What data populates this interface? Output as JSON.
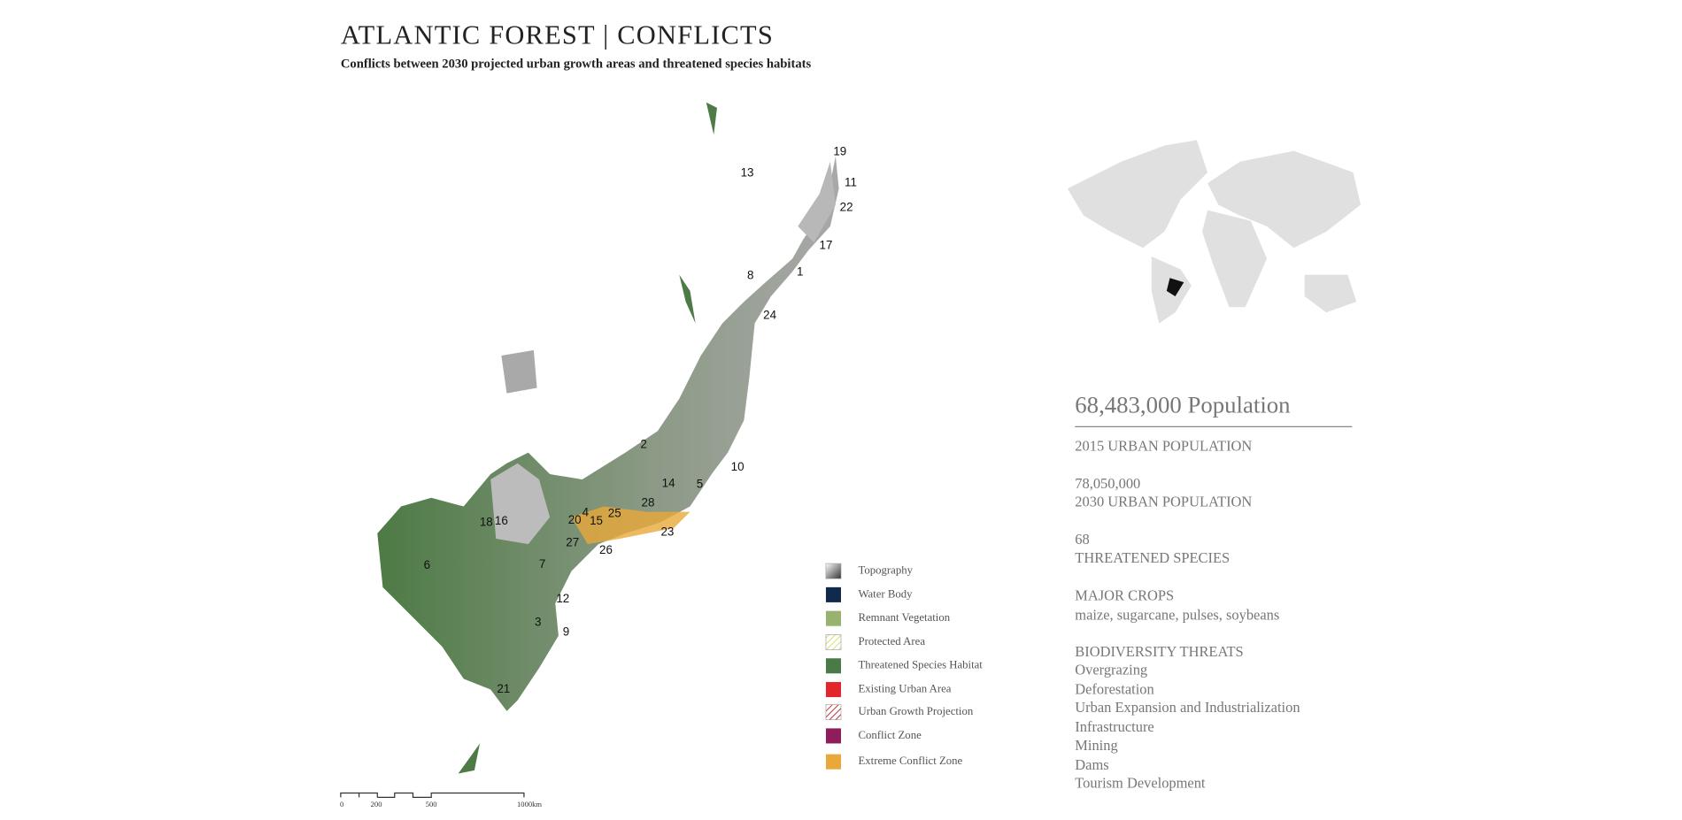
{
  "header": {
    "title": "ATLANTIC FOREST | CONFLICTS",
    "subtitle": "Conflicts between 2030 projected urban growth areas and threatened species habitats"
  },
  "map_labels": [
    "19",
    "13",
    "11",
    "22",
    "17",
    "8",
    "1",
    "24",
    "2",
    "10",
    "14",
    "5",
    "4",
    "20",
    "25",
    "28",
    "15",
    "18",
    "16",
    "23",
    "27",
    "26",
    "6",
    "7",
    "12",
    "3",
    "9",
    "21"
  ],
  "scale_bar": [
    "0",
    "200",
    "500",
    "1000km"
  ],
  "legend": [
    "Topography",
    "Water Body",
    "Remnant Vegetation",
    "Protected Area",
    "Threatened Species Habitat",
    "Existing Urban Area",
    "Urban Growth Projection",
    "Conflict Zone",
    "Extreme Conflict Zone"
  ],
  "stats": {
    "headline": "68,483,000 Population",
    "lines": [
      "2015 URBAN POPULATION",
      "78,050,000",
      "2030 URBAN POPULATION",
      "68",
      "THREATENED SPECIES",
      "MAJOR CROPS",
      "maize, sugarcane, pulses, soybeans",
      "BIODIVERSITY THREATS",
      "Overgrazing",
      "Deforestation",
      "Urban Expansion and Industrialization",
      "Infrastructure",
      "Mining",
      "Dams",
      "Tourism Development"
    ]
  }
}
